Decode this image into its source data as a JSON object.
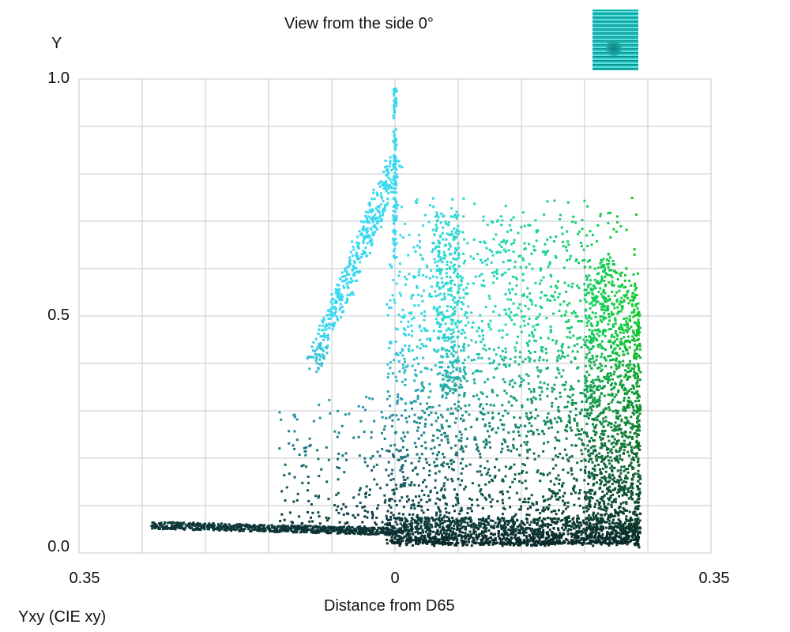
{
  "chart_data": {
    "type": "scatter",
    "title": "View from the side 0°",
    "xlabel": "Distance from D65",
    "ylabel": "Y",
    "footer": "Yxy (CIE xy)",
    "xlim": [
      -0.35,
      0.35
    ],
    "ylim": [
      0.0,
      1.0
    ],
    "x_tick_labels": [
      "0.35",
      "0",
      "0.35"
    ],
    "y_tick_labels": [
      "0.0",
      "0.5",
      "1.0"
    ],
    "grid": true,
    "series_colors": {
      "cyan": "#38d8f0",
      "teal": "#1fd6b0",
      "green": "#12c830",
      "dark": "#0a2a2a"
    },
    "clusters": [
      {
        "label": "blue-cyan ridge",
        "x_range": [
          -0.09,
          0.0
        ],
        "y_range": [
          0.4,
          0.82
        ]
      },
      {
        "label": "cyan-green ridge",
        "x_range": [
          0.05,
          0.075
        ],
        "y_range": [
          0.3,
          0.7
        ]
      },
      {
        "label": "green ridge",
        "x_range": [
          0.21,
          0.27
        ],
        "y_range": [
          0.02,
          0.65
        ]
      },
      {
        "label": "dark tail",
        "x_range": [
          -0.27,
          0.0
        ],
        "y_range": [
          0.03,
          0.07
        ]
      }
    ]
  },
  "thumbnail_icon": "swatch-thumbnail-icon"
}
